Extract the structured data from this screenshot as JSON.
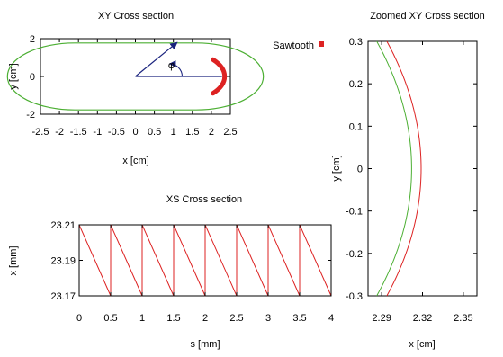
{
  "colors": {
    "green": "#4caf33",
    "red": "#dd2222",
    "arrow": "#1a237e",
    "axis": "#000000"
  },
  "legend": {
    "label": "Sawtooth",
    "placement": "top-right of upper-left panel"
  },
  "chart_data": [
    {
      "id": "xy",
      "type": "line",
      "title": "XY Cross section",
      "xlabel": "x [cm]",
      "ylabel": "y [cm]",
      "xlim": [
        -2.5,
        2.5
      ],
      "ylim": [
        -2,
        2
      ],
      "xticks": [
        "-2.5",
        "-2",
        "-1.5",
        "-1",
        "-0.5",
        "0",
        "0.5",
        "1",
        "1.5",
        "2",
        "2.5"
      ],
      "yticks": [
        "2",
        "0",
        "-2"
      ],
      "series": [
        {
          "kind": "stadium-outline",
          "straight_half_length": 1.6,
          "radius": 1.77
        },
        {
          "name": "Sawtooth",
          "kind": "arc",
          "center_x": 0.9,
          "radius": 1.45,
          "angle_range_deg": [
            -38,
            38
          ]
        }
      ],
      "annotations": [
        {
          "kind": "angle-arrow",
          "label": "φ",
          "origin": [
            0,
            0
          ],
          "tip": [
            1.1,
            1.8
          ]
        }
      ]
    },
    {
      "id": "xs",
      "type": "line",
      "title": "XS Cross section",
      "xlabel": "s [mm]",
      "ylabel": "x [mm]",
      "xlim": [
        0,
        4
      ],
      "ylim": [
        23.17,
        23.21
      ],
      "xticks": [
        "0",
        "0.5",
        "1",
        "1.5",
        "2",
        "2.5",
        "3",
        "3.5",
        "4"
      ],
      "yticks": [
        "23.21",
        "23.19",
        "23.17"
      ],
      "series": [
        {
          "name": "Sawtooth",
          "kind": "sawtooth",
          "period": 0.5,
          "high": 23.21,
          "low": 23.17
        }
      ]
    },
    {
      "id": "zoom",
      "type": "line",
      "title": "Zoomed XY Cross section",
      "xlabel": "x [cm]",
      "ylabel": "y [cm]",
      "xlim": [
        2.28,
        2.36
      ],
      "ylim": [
        -0.3,
        0.3
      ],
      "xticks": [
        "2.29",
        "2.32",
        "2.35"
      ],
      "yticks": [
        "0.3",
        "0.2",
        "0.1",
        "0",
        "-0.1",
        "-0.2",
        "-0.3"
      ],
      "series": [
        {
          "kind": "arc",
          "color": "green",
          "radius": 1.77,
          "center_x": 0.542,
          "ymin": -0.3,
          "ymax": 0.3
        },
        {
          "kind": "arc",
          "color": "red",
          "radius": 1.8,
          "center_x": 0.519,
          "ymin": -0.3,
          "ymax": 0.3
        }
      ]
    }
  ]
}
